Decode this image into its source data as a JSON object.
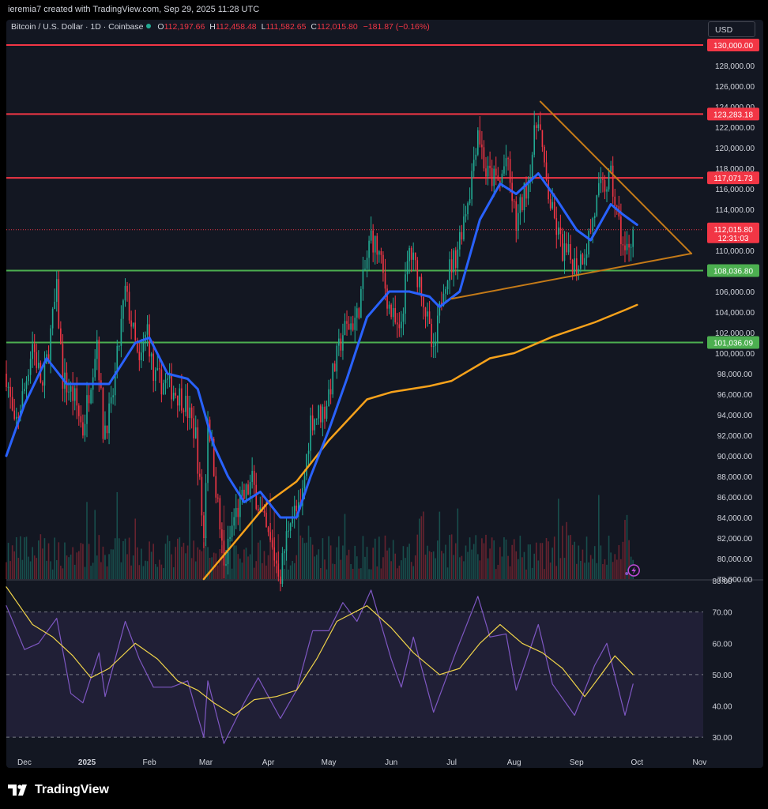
{
  "header": {
    "credit": "ieremia7 created with TradingView.com, Sep 29, 2025 11:28 UTC",
    "symbol": "Bitcoin / U.S. Dollar · 1D · Coinbase",
    "ohlc": [
      {
        "k": "O",
        "v": "112,197.66"
      },
      {
        "k": "H",
        "v": "112,458.48"
      },
      {
        "k": "L",
        "v": "111,582.65"
      },
      {
        "k": "C",
        "v": "112,015.80"
      }
    ],
    "change": "−181.87 (−0.16%)",
    "currency_button": "USD"
  },
  "footer": {
    "brand": "TradingView"
  },
  "colors": {
    "background": "#131722",
    "up": "#22ab94",
    "down": "#f23645",
    "ma_fast": "#2962ff",
    "ma_slow": "#f7a21b",
    "triangle": "#c47a18",
    "resistance": "#f23645",
    "support": "#4caf50",
    "rsi": "#7e57c2",
    "rsi_ma": "#f0d44a"
  },
  "chart_data": [
    {
      "type": "candlestick",
      "price_scale": {
        "ylim": [
          78000,
          131000
        ],
        "ticks": [
          "130,000.00",
          "128,000.00",
          "126,000.00",
          "124,000.00",
          "122,000.00",
          "120,000.00",
          "118,000.00",
          "116,000.00",
          "114,000.00",
          "112,000.00",
          "110,000.00",
          "108,000.00",
          "106,000.00",
          "104,000.00",
          "102,000.00",
          "100,000.00",
          "98,000.00",
          "96,000.00",
          "94,000.00",
          "92,000.00",
          "90,000.00",
          "88,000.00",
          "86,000.00",
          "84,000.00",
          "82,000.00",
          "80,000.00",
          "78,000.00"
        ]
      },
      "x_axis": {
        "labels": [
          "Dec",
          "2025",
          "Feb",
          "Mar",
          "Apr",
          "May",
          "Jun",
          "Jul",
          "Aug",
          "Sep",
          "Oct",
          "Nov"
        ],
        "label_dates": [
          "2024-12-01",
          "2025-01-01",
          "2025-02-01",
          "2025-03-01",
          "2025-04-01",
          "2025-05-01",
          "2025-06-01",
          "2025-07-01",
          "2025-08-01",
          "2025-09-01",
          "2025-10-01",
          "2025-11-01"
        ]
      },
      "horizontal_levels": [
        {
          "value": 130000,
          "label": "130,000.00",
          "kind": "resistance"
        },
        {
          "value": 123283.18,
          "label": "123,283.18",
          "kind": "resistance"
        },
        {
          "value": 117071.73,
          "label": "117,071.73",
          "kind": "resistance"
        },
        {
          "value": 108036.8,
          "label": "108,036.80",
          "kind": "support"
        },
        {
          "value": 101036.09,
          "label": "101,036.09",
          "kind": "support"
        }
      ],
      "last_price": {
        "value": 112015.8,
        "label": "112,015.80",
        "countdown": "12:31:03"
      },
      "triangle": {
        "upper": [
          [
            "2025-08-14",
            124500
          ],
          [
            "2025-10-28",
            109700
          ]
        ],
        "lower": [
          [
            "2025-07-01",
            105300
          ],
          [
            "2025-10-28",
            109700
          ]
        ]
      },
      "close_path": [
        [
          "2024-11-22",
          98000
        ],
        [
          "2024-11-26",
          92500
        ],
        [
          "2024-12-01",
          96500
        ],
        [
          "2024-12-05",
          101000
        ],
        [
          "2024-12-10",
          96500
        ],
        [
          "2024-12-17",
          106000
        ],
        [
          "2024-12-20",
          97500
        ],
        [
          "2024-12-26",
          95500
        ],
        [
          "2024-12-30",
          92500
        ],
        [
          "2025-01-06",
          101500
        ],
        [
          "2025-01-09",
          92500
        ],
        [
          "2025-01-13",
          94500
        ],
        [
          "2025-01-20",
          106000
        ],
        [
          "2025-01-23",
          103000
        ],
        [
          "2025-01-27",
          98500
        ],
        [
          "2025-01-31",
          102500
        ],
        [
          "2025-02-03",
          97500
        ],
        [
          "2025-02-10",
          97000
        ],
        [
          "2025-02-18",
          95500
        ],
        [
          "2025-02-24",
          92000
        ],
        [
          "2025-02-28",
          82000
        ],
        [
          "2025-03-02",
          94000
        ],
        [
          "2025-03-05",
          89000
        ],
        [
          "2025-03-10",
          79000
        ],
        [
          "2025-03-15",
          84000
        ],
        [
          "2025-03-24",
          87500
        ],
        [
          "2025-03-31",
          82500
        ],
        [
          "2025-04-07",
          78500
        ],
        [
          "2025-04-12",
          84500
        ],
        [
          "2025-04-17",
          84500
        ],
        [
          "2025-04-22",
          93500
        ],
        [
          "2025-04-29",
          94500
        ],
        [
          "2025-05-08",
          102000
        ],
        [
          "2025-05-15",
          103500
        ],
        [
          "2025-05-22",
          111500
        ],
        [
          "2025-05-26",
          109500
        ],
        [
          "2025-05-31",
          104500
        ],
        [
          "2025-06-05",
          101500
        ],
        [
          "2025-06-10",
          110000
        ],
        [
          "2025-06-16",
          106500
        ],
        [
          "2025-06-22",
          99500
        ],
        [
          "2025-06-27",
          107000
        ],
        [
          "2025-07-03",
          109500
        ],
        [
          "2025-07-10",
          116000
        ],
        [
          "2025-07-14",
          122000
        ],
        [
          "2025-07-18",
          117500
        ],
        [
          "2025-07-25",
          116500
        ],
        [
          "2025-07-28",
          119000
        ],
        [
          "2025-08-02",
          112500
        ],
        [
          "2025-08-08",
          117000
        ],
        [
          "2025-08-13",
          123500
        ],
        [
          "2025-08-16",
          117500
        ],
        [
          "2025-08-20",
          113500
        ],
        [
          "2025-08-25",
          110000
        ],
        [
          "2025-09-01",
          108500
        ],
        [
          "2025-09-06",
          110500
        ],
        [
          "2025-09-12",
          115500
        ],
        [
          "2025-09-18",
          117000
        ],
        [
          "2025-09-22",
          112500
        ],
        [
          "2025-09-25",
          109500
        ],
        [
          "2025-09-29",
          112015
        ]
      ],
      "ma_fast_path": [
        [
          "2024-11-22",
          90000
        ],
        [
          "2024-12-01",
          95000
        ],
        [
          "2024-12-12",
          99500
        ],
        [
          "2024-12-22",
          97000
        ],
        [
          "2025-01-03",
          97000
        ],
        [
          "2025-01-12",
          97000
        ],
        [
          "2025-01-25",
          101000
        ],
        [
          "2025-02-01",
          101500
        ],
        [
          "2025-02-10",
          98000
        ],
        [
          "2025-02-20",
          97500
        ],
        [
          "2025-02-25",
          96500
        ],
        [
          "2025-03-05",
          91000
        ],
        [
          "2025-03-12",
          88000
        ],
        [
          "2025-03-20",
          85500
        ],
        [
          "2025-03-28",
          86500
        ],
        [
          "2025-04-07",
          84000
        ],
        [
          "2025-04-15",
          84000
        ],
        [
          "2025-04-22",
          88000
        ],
        [
          "2025-05-01",
          92500
        ],
        [
          "2025-05-10",
          97500
        ],
        [
          "2025-05-20",
          103500
        ],
        [
          "2025-05-31",
          106000
        ],
        [
          "2025-06-10",
          106000
        ],
        [
          "2025-06-20",
          105500
        ],
        [
          "2025-06-25",
          104500
        ],
        [
          "2025-07-05",
          106000
        ],
        [
          "2025-07-15",
          113000
        ],
        [
          "2025-07-25",
          116500
        ],
        [
          "2025-08-02",
          115500
        ],
        [
          "2025-08-13",
          117500
        ],
        [
          "2025-08-22",
          115000
        ],
        [
          "2025-09-01",
          112000
        ],
        [
          "2025-09-08",
          111000
        ],
        [
          "2025-09-18",
          114500
        ],
        [
          "2025-09-24",
          113500
        ],
        [
          "2025-10-01",
          112500
        ]
      ],
      "ma_slow_path": [
        [
          "2025-02-28",
          78000
        ],
        [
          "2025-03-15",
          81500
        ],
        [
          "2025-04-01",
          85500
        ],
        [
          "2025-04-15",
          87500
        ],
        [
          "2025-05-01",
          91500
        ],
        [
          "2025-05-20",
          95500
        ],
        [
          "2025-06-01",
          96200
        ],
        [
          "2025-06-20",
          96800
        ],
        [
          "2025-07-01",
          97300
        ],
        [
          "2025-07-20",
          99500
        ],
        [
          "2025-08-01",
          100000
        ],
        [
          "2025-08-20",
          101600
        ],
        [
          "2025-09-10",
          103000
        ],
        [
          "2025-09-25",
          104200
        ],
        [
          "2025-10-01",
          104700
        ]
      ]
    },
    {
      "type": "line",
      "indicator": "RSI",
      "ylim": [
        25,
        80
      ],
      "ticks": [
        "80.00",
        "70.00",
        "60.00",
        "50.00",
        "40.00",
        "30.00"
      ],
      "band": [
        30,
        70
      ],
      "midline": 50,
      "rsi_path": [
        [
          "2024-11-22",
          72
        ],
        [
          "2024-12-01",
          58
        ],
        [
          "2024-12-08",
          60
        ],
        [
          "2024-12-17",
          68
        ],
        [
          "2024-12-24",
          44
        ],
        [
          "2024-12-30",
          41
        ],
        [
          "2025-01-07",
          57
        ],
        [
          "2025-01-10",
          43
        ],
        [
          "2025-01-20",
          67
        ],
        [
          "2025-01-27",
          55
        ],
        [
          "2025-02-03",
          46
        ],
        [
          "2025-02-12",
          46
        ],
        [
          "2025-02-20",
          48
        ],
        [
          "2025-02-28",
          30
        ],
        [
          "2025-03-02",
          48
        ],
        [
          "2025-03-10",
          28
        ],
        [
          "2025-03-20",
          41
        ],
        [
          "2025-03-27",
          49
        ],
        [
          "2025-04-07",
          36
        ],
        [
          "2025-04-15",
          45
        ],
        [
          "2025-04-23",
          64
        ],
        [
          "2025-05-01",
          64
        ],
        [
          "2025-05-08",
          73
        ],
        [
          "2025-05-15",
          67
        ],
        [
          "2025-05-22",
          77
        ],
        [
          "2025-06-01",
          55
        ],
        [
          "2025-06-06",
          46
        ],
        [
          "2025-06-12",
          62
        ],
        [
          "2025-06-22",
          38
        ],
        [
          "2025-07-03",
          57
        ],
        [
          "2025-07-14",
          75
        ],
        [
          "2025-07-20",
          62
        ],
        [
          "2025-07-28",
          63
        ],
        [
          "2025-08-02",
          45
        ],
        [
          "2025-08-13",
          66
        ],
        [
          "2025-08-20",
          47
        ],
        [
          "2025-08-31",
          37
        ],
        [
          "2025-09-10",
          53
        ],
        [
          "2025-09-16",
          60
        ],
        [
          "2025-09-25",
          37
        ],
        [
          "2025-09-29",
          47
        ]
      ],
      "rsi_ma_path": [
        [
          "2024-11-22",
          78
        ],
        [
          "2024-12-05",
          66
        ],
        [
          "2024-12-15",
          62
        ],
        [
          "2024-12-25",
          56
        ],
        [
          "2025-01-03",
          49
        ],
        [
          "2025-01-12",
          52
        ],
        [
          "2025-01-25",
          60
        ],
        [
          "2025-02-05",
          55
        ],
        [
          "2025-02-15",
          48
        ],
        [
          "2025-02-25",
          45
        ],
        [
          "2025-03-05",
          41
        ],
        [
          "2025-03-15",
          37
        ],
        [
          "2025-03-25",
          42
        ],
        [
          "2025-04-05",
          43
        ],
        [
          "2025-04-15",
          45
        ],
        [
          "2025-04-25",
          55
        ],
        [
          "2025-05-05",
          67
        ],
        [
          "2025-05-20",
          72
        ],
        [
          "2025-06-01",
          65
        ],
        [
          "2025-06-12",
          57
        ],
        [
          "2025-06-25",
          50
        ],
        [
          "2025-07-05",
          52
        ],
        [
          "2025-07-15",
          60
        ],
        [
          "2025-07-25",
          66
        ],
        [
          "2025-08-05",
          60
        ],
        [
          "2025-08-15",
          57
        ],
        [
          "2025-08-25",
          52
        ],
        [
          "2025-09-05",
          43
        ],
        [
          "2025-09-12",
          49
        ],
        [
          "2025-09-20",
          56
        ],
        [
          "2025-09-29",
          50
        ]
      ]
    }
  ]
}
